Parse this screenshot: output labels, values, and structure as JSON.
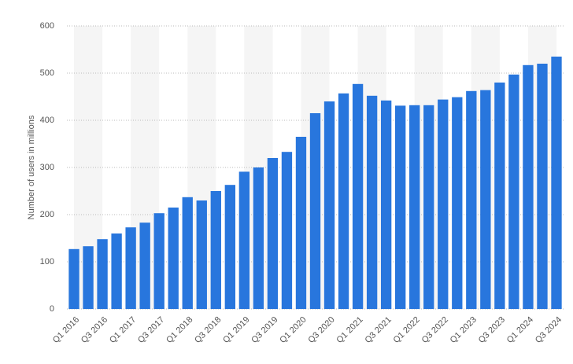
{
  "chart_data": {
    "type": "bar",
    "y_label": "Number of users in millions",
    "categories": [
      "Q1 2016",
      null,
      "Q3 2016",
      null,
      "Q1 2017",
      null,
      "Q3 2017",
      null,
      "Q1 2018",
      null,
      "Q3 2018",
      null,
      "Q1 2019",
      null,
      "Q3 2019",
      null,
      "Q1 2020",
      null,
      "Q3 2020",
      null,
      "Q1 2021",
      null,
      "Q3 2021",
      null,
      "Q1 2022",
      null,
      "Q3 2022",
      null,
      "Q1 2023",
      null,
      "Q3 2023",
      null,
      "Q1 2024",
      null,
      "Q3 2024"
    ],
    "values": [
      127,
      133,
      148,
      160,
      173,
      183,
      203,
      215,
      237,
      230,
      250,
      263,
      291,
      300,
      320,
      333,
      365,
      415,
      440,
      457,
      477,
      452,
      442,
      431,
      432,
      432,
      444,
      449,
      462,
      464,
      480,
      497,
      517,
      520,
      535
    ],
    "color": "#2876dd",
    "ylim": [
      0,
      600
    ],
    "yticks": [
      0,
      100,
      200,
      300,
      400,
      500,
      600
    ],
    "grid": true
  }
}
